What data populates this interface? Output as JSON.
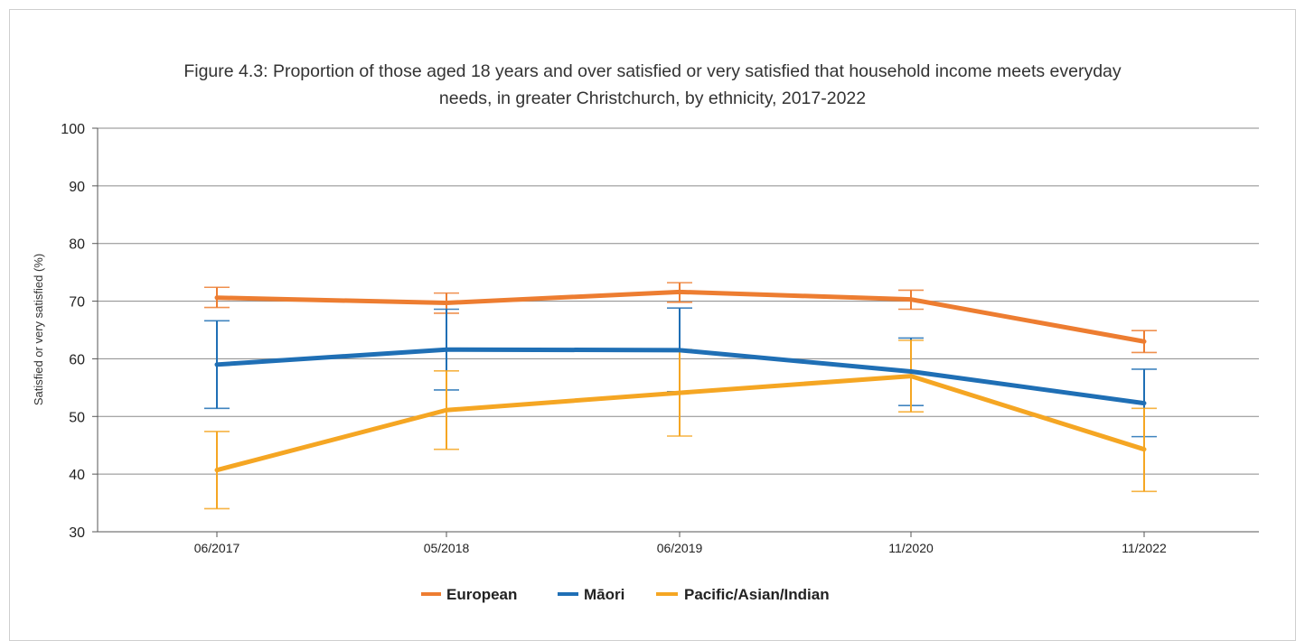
{
  "chart_data": {
    "type": "line",
    "title_line1": "Figure 4.3: Proportion of those aged 18 years and over satisfied or very satisfied that household income meets everyday",
    "title_line2": "needs, in greater Christchurch, by ethnicity, 2017-2022",
    "xlabel": "",
    "ylabel": "Satisfied or very satisfied (%)",
    "ylim": [
      30,
      100
    ],
    "yticks": [
      30,
      40,
      50,
      60,
      70,
      80,
      90,
      100
    ],
    "grid": true,
    "legend_position": "bottom",
    "categories": [
      "06/2017",
      "05/2018",
      "06/2019",
      "11/2020",
      "11/2022"
    ],
    "series": [
      {
        "name": "European",
        "color": "#ed7d31",
        "values": [
          70.6,
          69.7,
          71.6,
          70.3,
          63.0
        ],
        "error_low": [
          68.9,
          67.9,
          69.8,
          68.6,
          61.1
        ],
        "error_high": [
          72.4,
          71.4,
          73.2,
          71.9,
          64.9
        ]
      },
      {
        "name": "Māori",
        "color": "#1f6fb5",
        "values": [
          59.0,
          61.6,
          61.5,
          57.8,
          52.3
        ],
        "error_low": [
          51.4,
          54.6,
          54.3,
          51.9,
          46.5
        ],
        "error_high": [
          66.6,
          68.6,
          68.8,
          63.6,
          58.2
        ]
      },
      {
        "name": "Pacific/Asian/Indian",
        "color": "#f5a623",
        "values": [
          40.7,
          51.1,
          54.1,
          57.0,
          44.3
        ],
        "error_low": [
          34.0,
          44.3,
          46.6,
          50.8,
          37.0
        ],
        "error_high": [
          47.4,
          57.9,
          61.6,
          63.2,
          51.4
        ]
      }
    ]
  }
}
